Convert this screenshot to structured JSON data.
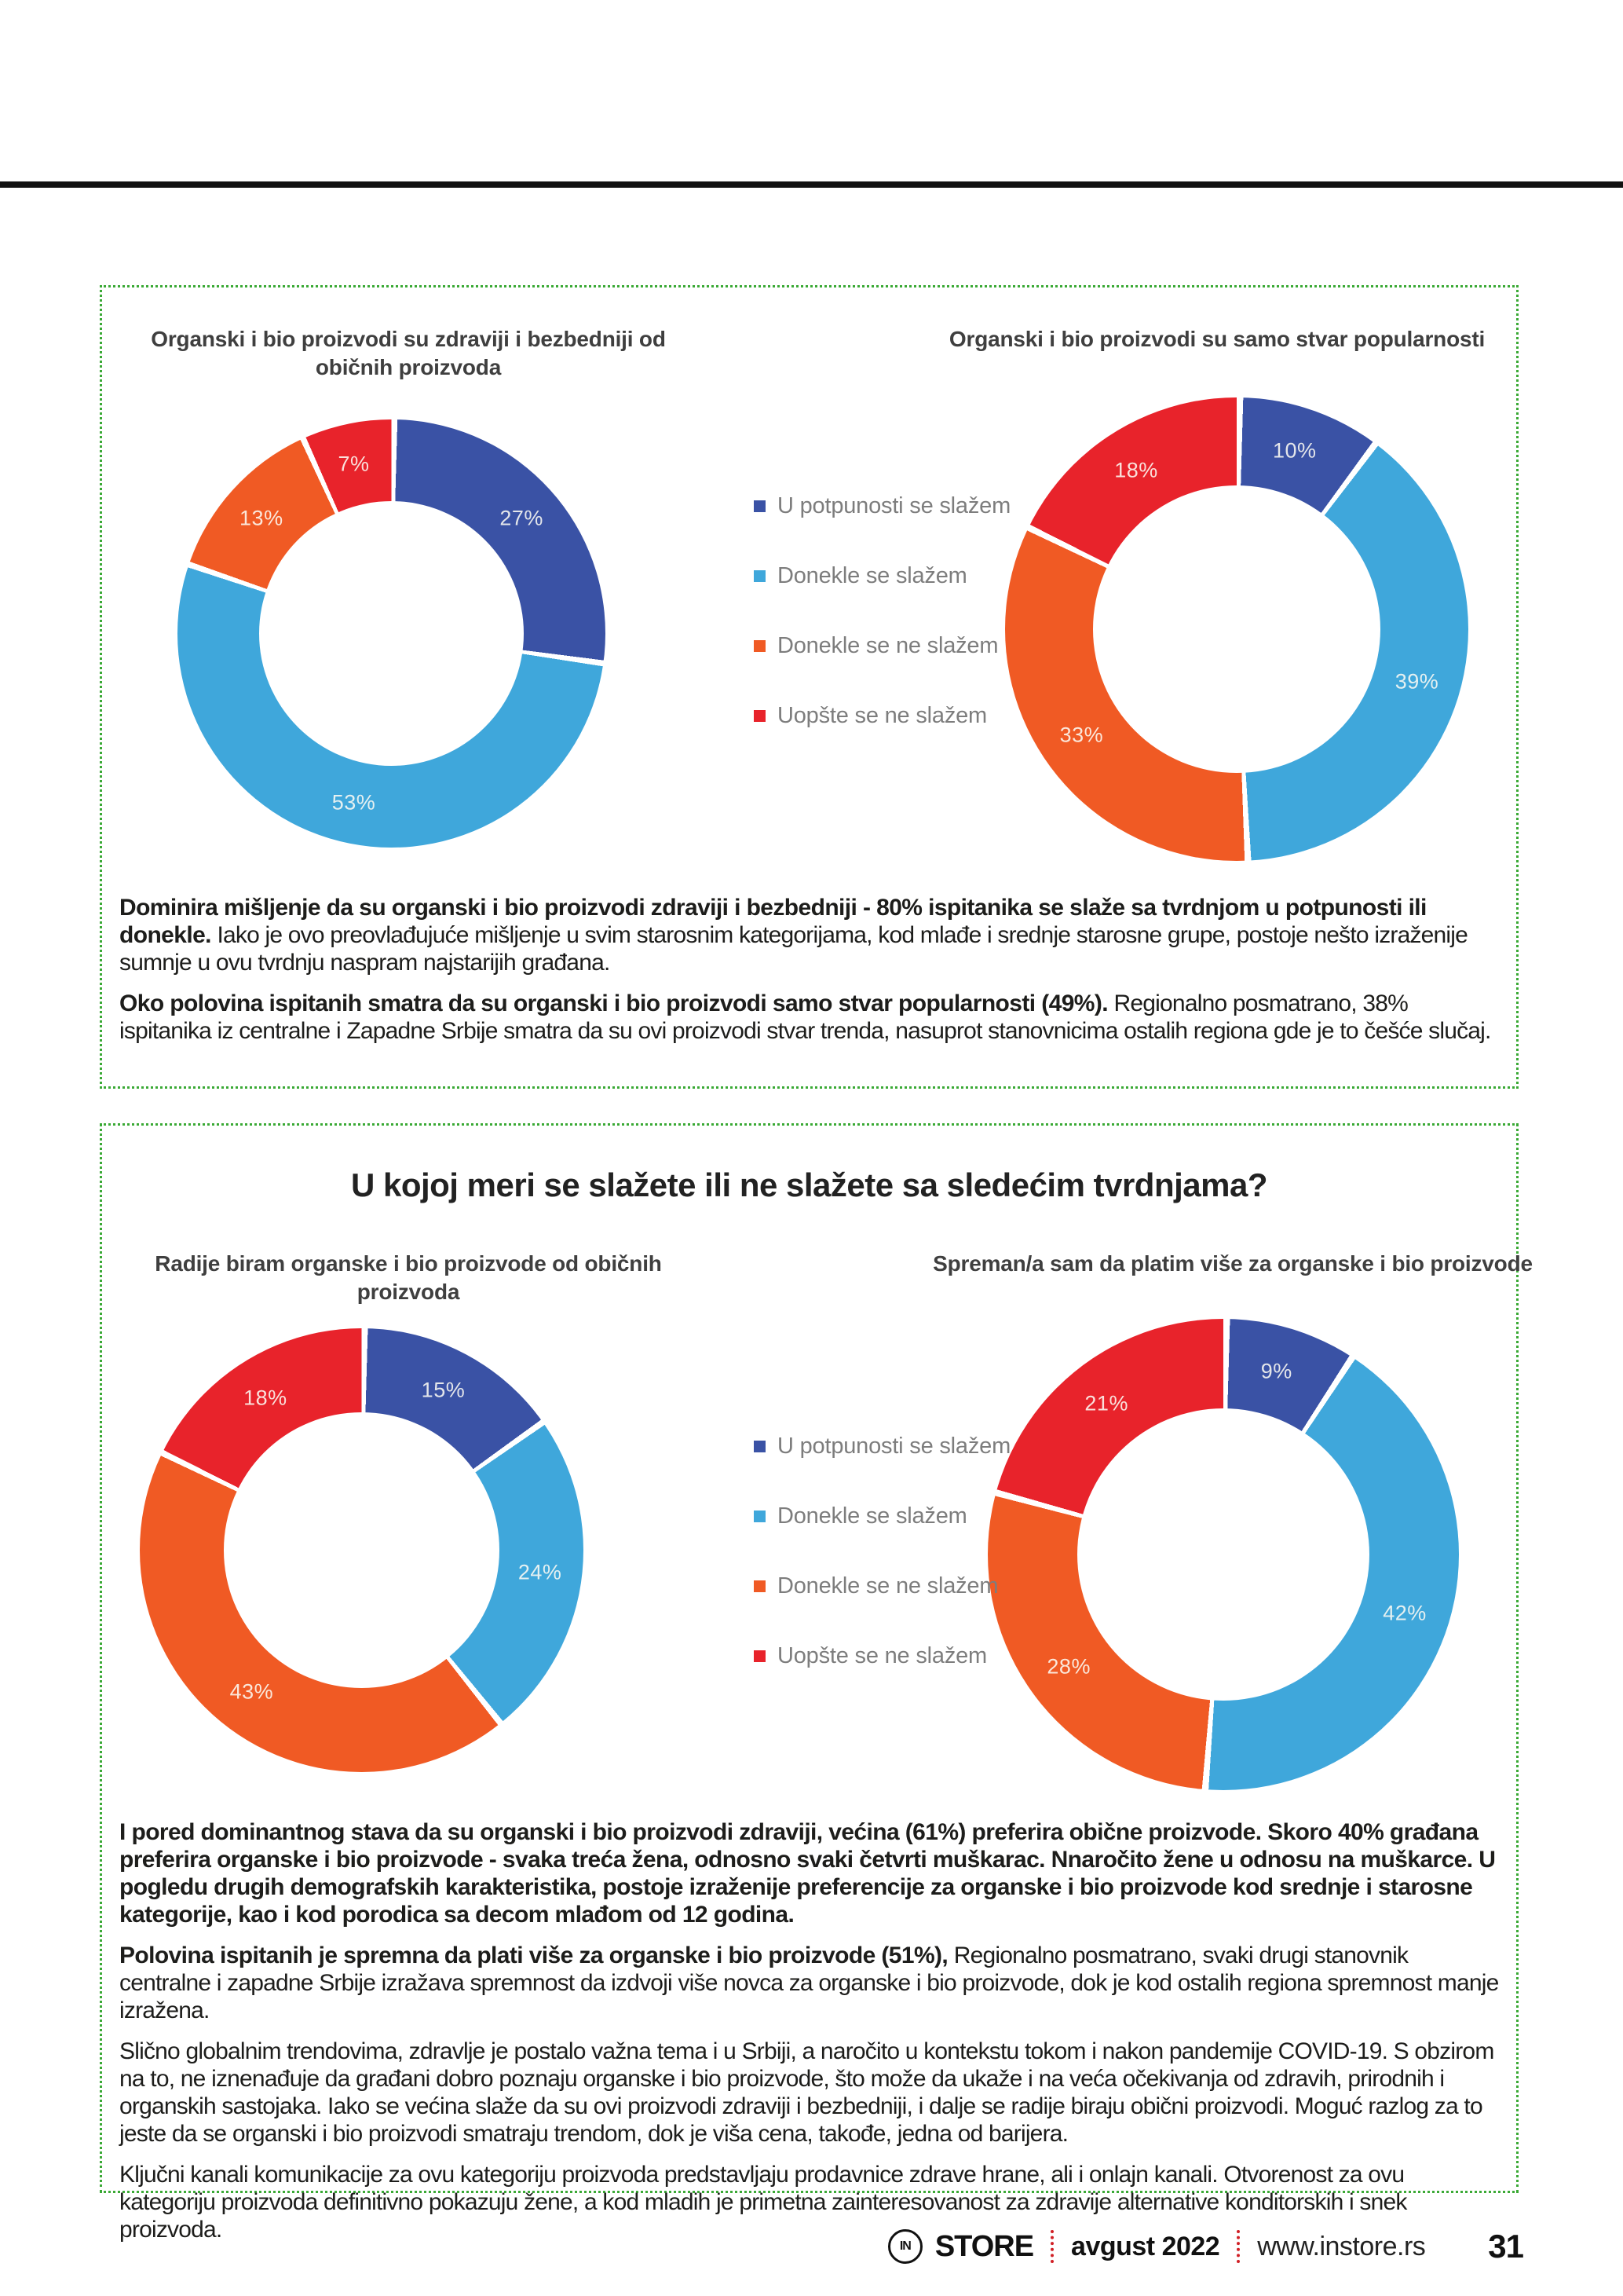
{
  "legend": {
    "colors": [
      "#3a52a5",
      "#3fa7db",
      "#f05a24",
      "#e8232b"
    ],
    "items": [
      {
        "label": "U potpunosti se slažem"
      },
      {
        "label": "Donekle se slažem"
      },
      {
        "label": "Donekle se ne slažem"
      },
      {
        "label": "Uopšte se ne slažem"
      }
    ]
  },
  "chart_data": [
    {
      "type": "pie",
      "variant": "donut",
      "title": "Organski i bio proizvodi su zdraviji i bezbedniji od običnih proizvoda",
      "categories": [
        "U potpunosti se slažem",
        "Donekle se slažem",
        "Donekle se ne slažem",
        "Uopšte se ne slažem"
      ],
      "values": [
        27,
        53,
        13,
        7
      ],
      "colors": [
        "#3a52a5",
        "#3fa7db",
        "#f05a24",
        "#e8232b"
      ],
      "legend_position": "right-center"
    },
    {
      "type": "pie",
      "variant": "donut",
      "title": "Organski i bio proizvodi su samo stvar popularnosti",
      "categories": [
        "U potpunosti se slažem",
        "Donekle se slažem",
        "Donekle se ne slažem",
        "Uopšte se ne slažem"
      ],
      "values": [
        10,
        39,
        33,
        18
      ],
      "colors": [
        "#3a52a5",
        "#3fa7db",
        "#f05a24",
        "#e8232b"
      ],
      "legend_position": "shared-center"
    },
    {
      "type": "pie",
      "variant": "donut",
      "title": "Radije biram organske i bio proizvode od običnih proizvoda",
      "categories": [
        "U potpunosti se slažem",
        "Donekle se slažem",
        "Donekle se ne slažem",
        "Uopšte se ne slažem"
      ],
      "values": [
        15,
        24,
        43,
        18
      ],
      "colors": [
        "#3a52a5",
        "#3fa7db",
        "#f05a24",
        "#e8232b"
      ],
      "legend_position": "shared-center"
    },
    {
      "type": "pie",
      "variant": "donut",
      "title": "Spreman/a sam da platim više za organske i bio proizvode",
      "categories": [
        "U potpunosti se slažem",
        "Donekle se slažem",
        "Donekle se ne slažem",
        "Uopšte se ne slažem"
      ],
      "values": [
        9,
        42,
        28,
        21
      ],
      "colors": [
        "#3a52a5",
        "#3fa7db",
        "#f05a24",
        "#e8232b"
      ],
      "legend_position": "shared-center"
    }
  ],
  "section1": {
    "charts": [
      {
        "title": "Organski i bio proizvodi su zdraviji i bezbedniji od običnih proizvoda"
      },
      {
        "title": "Organski i bio proizvodi su samo stvar popularnosti"
      }
    ],
    "paragraphs": [
      {
        "bold": "Dominira mišljenje da su organski i bio proizvodi zdraviji i bezbedniji - 80% ispitanika se slaže sa tvrdnjom u potpunosti ili donekle.",
        "regular": "Iako je ovo preovlađujuće mišljenje u svim starosnim kategorijama, kod mlađe i srednje starosne grupe, postoje nešto izraženije sumnje u ovu tvrdnju naspram najstarijih građana."
      },
      {
        "bold": "Oko polovina ispitanih smatra da su organski i bio proizvodi samo stvar popularnosti (49%).",
        "regular": "Regionalno posmatrano, 38% ispitanika iz centralne i Zapadne Srbije smatra da su ovi proizvodi stvar trenda, nasuprot stanovnicima ostalih regiona gde je to češće slučaj."
      }
    ]
  },
  "section2": {
    "title": "U kojoj meri se slažete ili ne slažete sa sledećim tvrdnjama?",
    "charts": [
      {
        "title": "Radije biram organske i bio proizvode od običnih proizvoda"
      },
      {
        "title": "Spreman/a sam da platim više za organske i bio proizvode"
      }
    ],
    "paragraphs": [
      {
        "bold": "I pored dominantnog stava da su organski i bio proizvodi zdraviji, većina (61%) preferira obične proizvode. Skoro 40% građana preferira organske i bio proizvode - svaka treća žena, odnosno svaki četvrti muškarac. Nnaročito žene u odnosu na muškarce. U pogledu drugih demografskih karakteristika, postoje izraženije preferencije za organske i bio proizvode kod srednje i starosne kategorije, kao i kod porodica sa decom mlađom od 12 godina.",
        "regular": ""
      },
      {
        "bold": "Polovina ispitanih je spremna da plati više za organske i bio proizvode (51%),",
        "regular": "Regionalno posmatrano, svaki drugi stanovnik centralne i zapadne Srbije izražava spremnost da izdvoji više novca za organske i bio proizvode, dok je kod ostalih regiona spremnost manje izražena."
      },
      {
        "bold": "",
        "regular": "Slično globalnim trendovima, zdravlje je postalo važna tema i u Srbiji, a naročito u kontekstu tokom i nakon pandemije COVID-19. S obzirom na to, ne iznenađuje da građani dobro poznaju organske i bio proizvode, što može da ukaže i na veća očekivanja od zdravih, prirodnih i organskih sastojaka. Iako se većina slaže da su ovi proizvodi zdraviji i bezbedniji, i dalje se radije biraju obični proizvodi. Moguć razlog za to jeste da se organski i bio proizvodi smatraju trendom, dok je viša cena, takođe, jedna od barijera."
      },
      {
        "bold": "",
        "regular": "Ključni kanali komunikacije za ovu kategoriju proizvoda predstavljaju prodavnice zdrave hrane, ali i onlajn kanali. Otvorenost za ovu kategoriju proizvoda definitivno pokazuju žene, a kod mladih je primetna zainteresovanost za zdravije alternative konditorskih i snek proizvoda."
      }
    ]
  },
  "footer": {
    "logo_text": "IN",
    "brand": "STORE",
    "issue": "avgust 2022",
    "website": "www.instore.rs",
    "page_number": "31"
  }
}
